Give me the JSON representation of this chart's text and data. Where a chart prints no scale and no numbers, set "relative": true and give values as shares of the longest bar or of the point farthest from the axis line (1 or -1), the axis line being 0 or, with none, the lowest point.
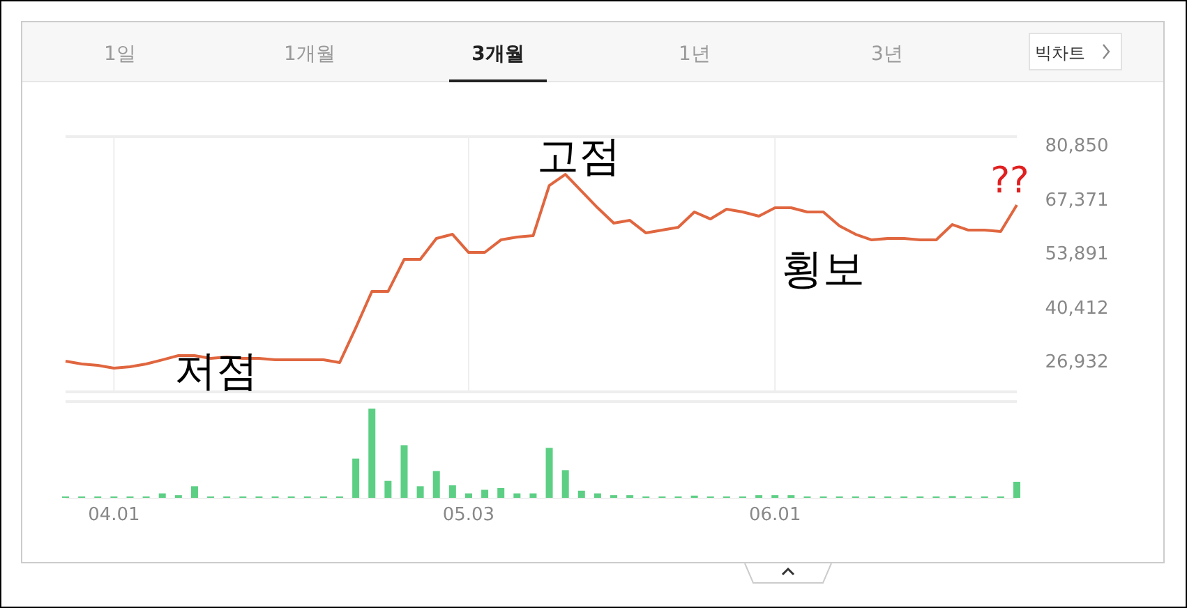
{
  "chart_data": [
    {
      "type": "other",
      "annotations": [
        "1일",
        "1개월",
        "3개월",
        "1년",
        "3년",
        "빅차트"
      ]
    },
    {
      "type": "line",
      "categories": [
        null,
        null,
        null,
        "04.01",
        null,
        null,
        null,
        null,
        null,
        null,
        null,
        null,
        null,
        null,
        null,
        null,
        null,
        null,
        null,
        null,
        null,
        null,
        null,
        null,
        null,
        "05.03",
        null,
        null,
        null,
        null,
        null,
        null,
        null,
        null,
        null,
        null,
        null,
        null,
        null,
        null,
        null,
        null,
        null,
        null,
        "06.01",
        null,
        null,
        null,
        null,
        null,
        null,
        null,
        null,
        null,
        null,
        null,
        null,
        null,
        null,
        null
      ],
      "series": [
        {
          "color": "#e0663f",
          "values": [
            26930,
            26230,
            25880,
            25190,
            25530,
            26230,
            27270,
            28320,
            28320,
            27620,
            27970,
            27620,
            27620,
            27270,
            27270,
            27270,
            27270,
            26580,
            35270,
            44320,
            44320,
            52320,
            52320,
            57540,
            58580,
            54060,
            54060,
            57190,
            57890,
            58240,
            70760,
            73540,
            69370,
            65190,
            61370,
            62060,
            58930,
            59630,
            60320,
            64150,
            62410,
            64850,
            64150,
            63110,
            65190,
            65190,
            64150,
            64150,
            60670,
            58580,
            57190,
            57540,
            57540,
            57190,
            57190,
            61020,
            59630,
            59630,
            59280,
            65890
          ]
        }
      ],
      "ylim": [
        19280,
        83290
      ],
      "yticks": [
        {
          "value": 26932,
          "label": "26,932"
        },
        {
          "value": 40412,
          "label": "40,412"
        },
        {
          "value": 53891,
          "label": "53,891"
        },
        {
          "value": 67371,
          "label": "67,371"
        },
        {
          "value": 80850,
          "label": "80,850"
        }
      ],
      "grid": "x",
      "tick_labels": "y",
      "marker": "none",
      "line_style": "solid",
      "annotations": [
        "저점",
        "고점",
        "횡보",
        "??"
      ]
    },
    {
      "type": "bar",
      "relative": true,
      "categories": [
        null,
        null,
        null,
        "04.01",
        null,
        null,
        null,
        null,
        null,
        null,
        null,
        null,
        null,
        null,
        null,
        null,
        null,
        null,
        null,
        null,
        null,
        null,
        null,
        null,
        null,
        "05.03",
        null,
        null,
        null,
        null,
        null,
        null,
        null,
        null,
        null,
        null,
        null,
        null,
        null,
        null,
        null,
        null,
        null,
        null,
        "06.01",
        null,
        null,
        null,
        null,
        null,
        null,
        null,
        null,
        null,
        null,
        null,
        null,
        null,
        null,
        null
      ],
      "color": "#5ccf84",
      "values": [
        0.015,
        0.015,
        0.015,
        0.015,
        0.015,
        0.015,
        0.05,
        0.03,
        0.13,
        0.015,
        0.015,
        0.015,
        0.015,
        0.015,
        0.015,
        0.015,
        0.015,
        0.015,
        0.44,
        1,
        0.19,
        0.59,
        0.13,
        0.3,
        0.14,
        0.05,
        0.09,
        0.11,
        0.05,
        0.05,
        0.56,
        0.31,
        0.08,
        0.05,
        0.03,
        0.03,
        0.015,
        0.015,
        0.015,
        0.025,
        0.015,
        0.015,
        0.015,
        0.03,
        0.03,
        0.03,
        0.015,
        0.015,
        0.015,
        0.015,
        0.015,
        0.015,
        0.015,
        0.015,
        0.015,
        0.02,
        0.015,
        0.015,
        0.015,
        0.18
      ],
      "tick_labels": "x"
    }
  ]
}
